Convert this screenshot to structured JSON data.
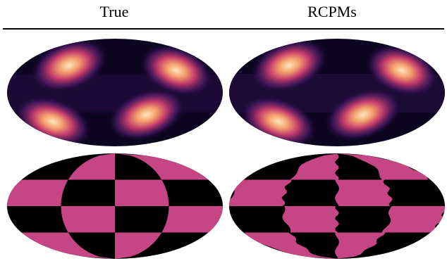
{
  "figure": {
    "headers": {
      "true": "True",
      "rcpms": "RCPMs"
    },
    "colormap": {
      "background": "#000000",
      "low": "#0b0520",
      "mid": "#5a1f6b",
      "high": "#e8656b",
      "peak": "#fce8bd",
      "checker": "#c54585"
    }
  }
}
